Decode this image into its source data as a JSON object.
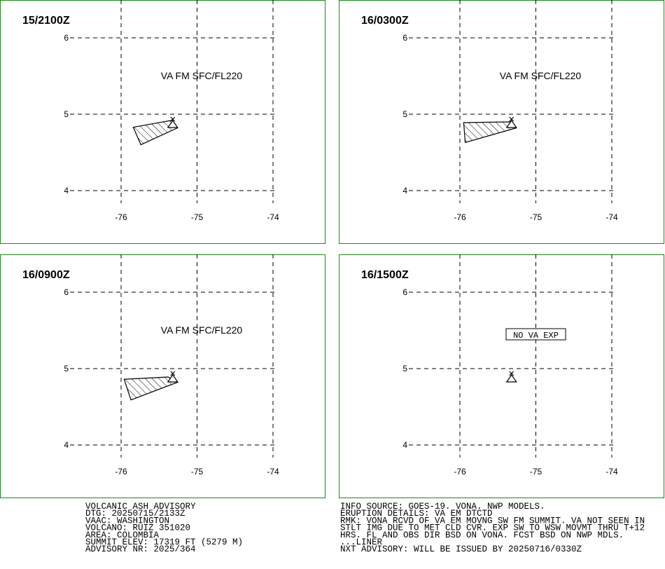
{
  "xticks": [
    -76,
    -75,
    -74
  ],
  "yticks": [
    4,
    5,
    6
  ],
  "volcano": {
    "lon": -75.32,
    "lat": 4.89
  },
  "panels": [
    {
      "time": "15/2100Z",
      "label": "VA FM SFC/FL220",
      "polygon": [
        [
          -75.84,
          4.83
        ],
        [
          -75.33,
          4.92
        ],
        [
          -75.26,
          4.82
        ],
        [
          -75.74,
          4.6
        ]
      ]
    },
    {
      "time": "16/0300Z",
      "label": "VA FM SFC/FL220",
      "polygon": [
        [
          -75.95,
          4.89
        ],
        [
          -75.33,
          4.9
        ],
        [
          -75.26,
          4.82
        ],
        [
          -75.93,
          4.63
        ]
      ]
    },
    {
      "time": "16/0900Z",
      "label": "VA FM SFC/FL220",
      "polygon": [
        [
          -75.96,
          4.86
        ],
        [
          -75.38,
          4.89
        ],
        [
          -75.26,
          4.82
        ],
        [
          -75.87,
          4.59
        ]
      ]
    },
    {
      "time": "16/1500Z",
      "label": "NO VA EXP"
    }
  ],
  "advisory_left": [
    "VOLCANIC ASH ADVISORY",
    "DTG: 20250715/2133Z",
    "VAAC: WASHINGTON",
    "VOLCANO: RUIZ 351020",
    "AREA: COLOMBIA",
    "SUMMIT ELEV: 17319 FT (5279 M)",
    "ADVISORY NR: 2025/364"
  ],
  "advisory_right": [
    "INFO SOURCE: GOES-19. VONA. NWP MODELS.",
    "ERUPTION DETAILS: VA EM DTCTD",
    "RMK: VONA RCVD OF VA EM MOVNG SW FM SUMMIT. VA NOT SEEN IN",
    "STLT IMG DUE TO MET CLD CVR. EXP SW TO WSW MOVMT THRU T+12",
    "HRS. FL AND OBS DIR BSD ON VONA. FCST BSD ON NWP MDLS.",
    "...LINER",
    "NXT ADVISORY: WILL BE ISSUED BY 20250716/0330Z"
  ]
}
